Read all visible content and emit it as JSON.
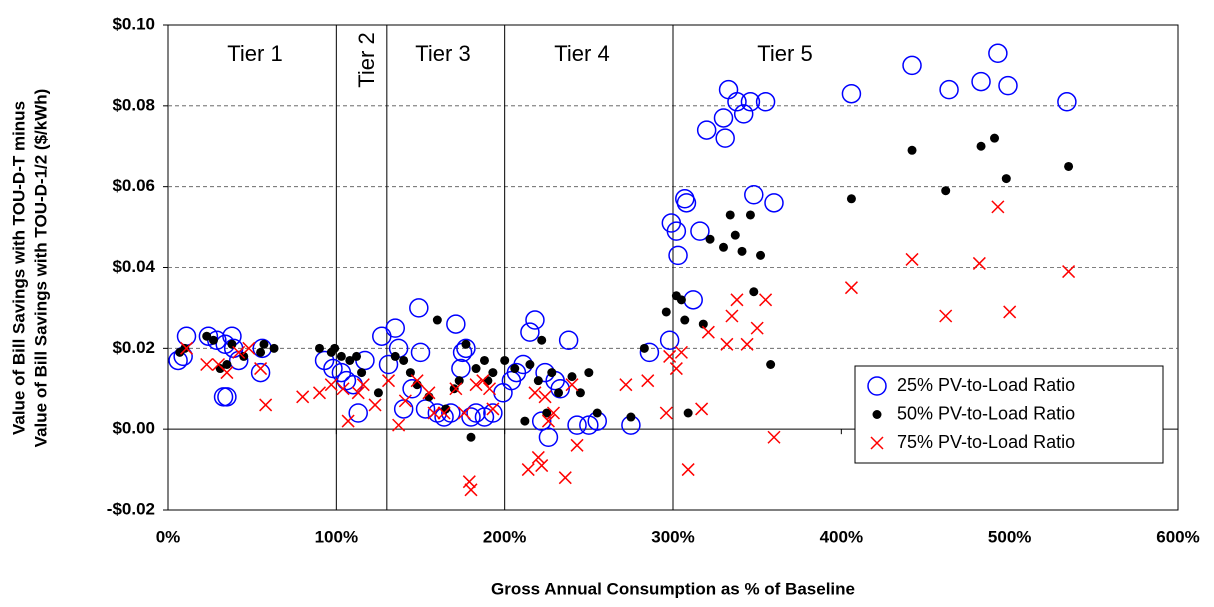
{
  "chart_data": {
    "type": "scatter",
    "x_label": "Gross Annual Consumption as % of Baseline",
    "y_label": [
      "Value of Bill Savings with TOU-D-T minus",
      "Value of Bill Savings with TOU-D-1/2 ($/kWh)"
    ],
    "xlim": [
      0,
      600
    ],
    "ylim": [
      -0.02,
      0.1
    ],
    "xticks": [
      {
        "value": 0,
        "label": "0%"
      },
      {
        "value": 100,
        "label": "100%"
      },
      {
        "value": 200,
        "label": "200%"
      },
      {
        "value": 300,
        "label": "300%"
      },
      {
        "value": 400,
        "label": "400%"
      },
      {
        "value": 500,
        "label": "500%"
      },
      {
        "value": 600,
        "label": "600%"
      }
    ],
    "yticks": [
      {
        "value": -0.02,
        "label": "-$0.02"
      },
      {
        "value": 0,
        "label": "$0.00"
      },
      {
        "value": 0.02,
        "label": "$0.02"
      },
      {
        "value": 0.04,
        "label": "$0.04"
      },
      {
        "value": 0.06,
        "label": "$0.06"
      },
      {
        "value": 0.08,
        "label": "$0.08"
      },
      {
        "value": 0.1,
        "label": "$0.10"
      }
    ],
    "grid": true,
    "legend_position": "lower-right",
    "tier_boundaries": [
      100,
      130,
      200,
      300
    ],
    "tier_labels": [
      "Tier 1",
      "Tier 2",
      "Tier 3",
      "Tier 4",
      "Tier 5"
    ],
    "series": [
      {
        "name": "25% PV-to-Load Ratio",
        "color": "#0000ff",
        "marker": "circle",
        "x": [
          6,
          9,
          11,
          24,
          29,
          33,
          35,
          38,
          34,
          39,
          42,
          55,
          56,
          93,
          98,
          103,
          106,
          110,
          113,
          117,
          127,
          131,
          135,
          137,
          140,
          149,
          150,
          145,
          153,
          160,
          164,
          168,
          171,
          175,
          174,
          177,
          180,
          183,
          188,
          193,
          199,
          204,
          207,
          211,
          215,
          218,
          222,
          224,
          226,
          230,
          233,
          238,
          243,
          250,
          255,
          275,
          286,
          298,
          299,
          302,
          303,
          307,
          308,
          312,
          316,
          320,
          330,
          331,
          333,
          338,
          342,
          346,
          348,
          355,
          360,
          406,
          442,
          464,
          483,
          493,
          499,
          534
        ],
        "values": [
          0.017,
          0.018,
          0.023,
          0.023,
          0.022,
          0.008,
          0.008,
          0.023,
          0.021,
          0.02,
          0.017,
          0.014,
          0.02,
          0.017,
          0.015,
          0.014,
          0.012,
          0.011,
          0.004,
          0.017,
          0.023,
          0.016,
          0.025,
          0.02,
          0.005,
          0.03,
          0.019,
          0.01,
          0.005,
          0.004,
          0.003,
          0.004,
          0.026,
          0.019,
          0.015,
          0.02,
          0.003,
          0.004,
          0.003,
          0.004,
          0.009,
          0.012,
          0.014,
          0.016,
          0.024,
          0.027,
          0.002,
          0.014,
          -0.002,
          0.012,
          0.01,
          0.022,
          0.001,
          0.001,
          0.002,
          0.001,
          0.019,
          0.022,
          0.051,
          0.049,
          0.043,
          0.057,
          0.056,
          0.032,
          0.049,
          0.074,
          0.077,
          0.072,
          0.084,
          0.081,
          0.078,
          0.081,
          0.058,
          0.081,
          0.056,
          0.083,
          0.09,
          0.084,
          0.086,
          0.093,
          0.085,
          0.081
        ]
      },
      {
        "name": "50% PV-to-Load Ratio",
        "color": "#000000",
        "marker": "dot",
        "x": [
          7,
          10,
          23,
          27,
          31,
          35,
          38,
          45,
          55,
          57,
          63,
          90,
          97,
          99,
          103,
          108,
          112,
          115,
          125,
          135,
          140,
          144,
          148,
          155,
          160,
          165,
          170,
          173,
          177,
          180,
          183,
          188,
          190,
          193,
          200,
          206,
          212,
          215,
          220,
          222,
          225,
          228,
          232,
          240,
          245,
          250,
          255,
          275,
          283,
          296,
          302,
          305,
          307,
          309,
          318,
          322,
          330,
          334,
          337,
          341,
          346,
          348,
          352,
          358,
          406,
          442,
          462,
          483,
          491,
          498,
          535
        ],
        "values": [
          0.019,
          0.02,
          0.023,
          0.022,
          0.015,
          0.016,
          0.021,
          0.018,
          0.019,
          0.021,
          0.02,
          0.02,
          0.019,
          0.02,
          0.018,
          0.017,
          0.018,
          0.014,
          0.009,
          0.018,
          0.017,
          0.014,
          0.011,
          0.008,
          0.027,
          0.005,
          0.01,
          0.012,
          0.021,
          -0.002,
          0.015,
          0.017,
          0.012,
          0.014,
          0.017,
          0.015,
          0.002,
          0.016,
          0.012,
          0.022,
          0.004,
          0.014,
          0.009,
          0.013,
          0.009,
          0.014,
          0.004,
          0.003,
          0.02,
          0.029,
          0.033,
          0.032,
          0.027,
          0.004,
          0.026,
          0.047,
          0.045,
          0.053,
          0.048,
          0.044,
          0.053,
          0.034,
          0.043,
          0.016,
          0.057,
          0.069,
          0.059,
          0.07,
          0.072,
          0.062,
          0.065
        ]
      },
      {
        "name": "75% PV-to-Load Ratio",
        "color": "#ff0000",
        "marker": "x",
        "x": [
          11,
          23,
          30,
          35,
          42,
          48,
          55,
          58,
          80,
          90,
          97,
          104,
          107,
          113,
          116,
          123,
          131,
          137,
          141,
          148,
          155,
          158,
          164,
          171,
          176,
          179,
          180,
          183,
          187,
          191,
          193,
          214,
          218,
          220,
          222,
          224,
          226,
          229,
          236,
          240,
          243,
          272,
          285,
          296,
          298,
          302,
          305,
          309,
          317,
          321,
          332,
          335,
          338,
          344,
          350,
          355,
          360,
          406,
          442,
          462,
          482,
          493,
          500,
          535
        ],
        "values": [
          0.02,
          0.016,
          0.016,
          0.014,
          0.019,
          0.02,
          0.015,
          0.006,
          0.008,
          0.009,
          0.011,
          0.01,
          0.002,
          0.009,
          0.011,
          0.006,
          0.012,
          0.001,
          0.007,
          0.012,
          0.009,
          0.004,
          0.004,
          0.01,
          0.004,
          -0.013,
          -0.015,
          0.011,
          0.012,
          0.01,
          0.005,
          -0.01,
          0.009,
          -0.007,
          -0.009,
          0.008,
          0.002,
          0.004,
          -0.012,
          0.011,
          -0.004,
          0.011,
          0.012,
          0.004,
          0.018,
          0.015,
          0.019,
          -0.01,
          0.005,
          0.024,
          0.021,
          0.028,
          0.032,
          0.021,
          0.025,
          0.032,
          -0.002,
          0.035,
          0.042,
          0.028,
          0.041,
          0.055,
          0.029,
          0.039
        ]
      }
    ]
  }
}
